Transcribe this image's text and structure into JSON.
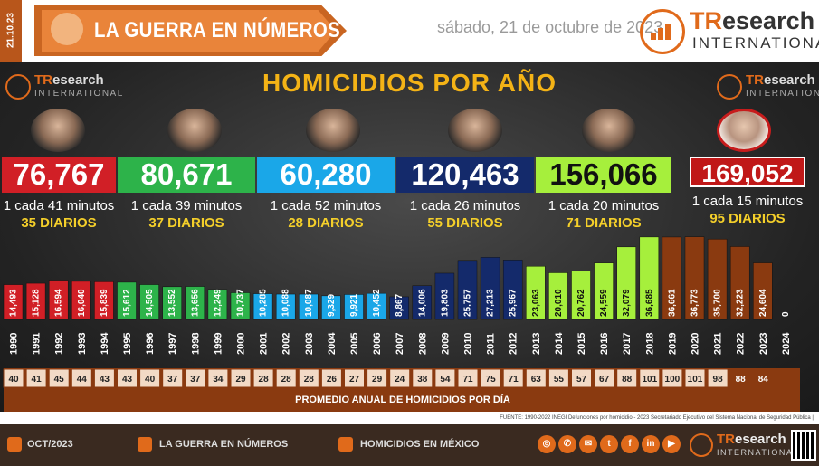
{
  "header": {
    "date_strip": "21.10.23",
    "title": "LA GUERRA EN NÚMEROS",
    "date": "sábado, 21 de octubre de 2023",
    "logo_tr": "TR",
    "logo_esearch": "esearch",
    "logo_int": "INTERNATIONAL"
  },
  "main": {
    "title": "HOMICIDIOS POR AÑO",
    "watermark_t": "TR",
    "watermark_esearch": "esearch",
    "watermark_int": "INTERNATIONAL"
  },
  "presidents": [
    {
      "total": "76,767",
      "rate": "1 cada 41 minutos",
      "daily": "35 DIARIOS",
      "color": "#d11f26",
      "text": "#ffffff"
    },
    {
      "total": "80,671",
      "rate": "1 cada 39 minutos",
      "daily": "37 DIARIOS",
      "color": "#2db34a",
      "text": "#ffffff"
    },
    {
      "total": "60,280",
      "rate": "1 cada 52 minutos",
      "daily": "28 DIARIOS",
      "color": "#1aa7e8",
      "text": "#ffffff"
    },
    {
      "total": "120,463",
      "rate": "1 cada 26 minutos",
      "daily": "55 DIARIOS",
      "color": "#142a6b",
      "text": "#ffffff"
    },
    {
      "total": "156,066",
      "rate": "1 cada 20 minutos",
      "daily": "71 DIARIOS",
      "color": "#a6ef3c",
      "text": "#111111"
    },
    {
      "total": "169,052",
      "rate": "1 cada 15 minutos",
      "daily": "95 DIARIOS",
      "color": "#c01818",
      "text": "#ffffff"
    }
  ],
  "chart_data": {
    "type": "bar",
    "title": "HOMICIDIOS POR AÑO",
    "categories": [
      "1990",
      "1991",
      "1992",
      "1993",
      "1994",
      "1995",
      "1996",
      "1997",
      "1998",
      "1999",
      "2000",
      "2001",
      "2002",
      "2003",
      "2004",
      "2005",
      "2006",
      "2007",
      "2008",
      "2009",
      "2010",
      "2011",
      "2012",
      "2013",
      "2014",
      "2015",
      "2016",
      "2017",
      "2018",
      "2019",
      "2020",
      "2021",
      "2022",
      "2023",
      "2024"
    ],
    "values": [
      14493,
      15128,
      16594,
      16040,
      15839,
      15612,
      14505,
      13552,
      13656,
      12249,
      10737,
      10285,
      10088,
      10087,
      9329,
      9921,
      10452,
      8867,
      14006,
      19803,
      25757,
      27213,
      25967,
      23063,
      20010,
      20762,
      24559,
      32079,
      36685,
      36661,
      36773,
      35700,
      32223,
      24604,
      0
    ],
    "value_labels": [
      "14,493",
      "15,128",
      "16,594",
      "16,040",
      "15,839",
      "15,612",
      "14,505",
      "13,552",
      "13,656",
      "12,249",
      "10,737",
      "10,285",
      "10,088",
      "10,087",
      "9,329",
      "9,921",
      "10,452",
      "8,867",
      "14,006",
      "19,803",
      "25,757",
      "27,213",
      "25,967",
      "23,063",
      "20,010",
      "20,762",
      "24,559",
      "32,079",
      "36,685",
      "36,661",
      "36,773",
      "35,700",
      "32,223",
      "24,604",
      "0"
    ],
    "colors": [
      "#d11f26",
      "#d11f26",
      "#d11f26",
      "#d11f26",
      "#d11f26",
      "#2db34a",
      "#2db34a",
      "#2db34a",
      "#2db34a",
      "#2db34a",
      "#2db34a",
      "#1aa7e8",
      "#1aa7e8",
      "#1aa7e8",
      "#1aa7e8",
      "#1aa7e8",
      "#1aa7e8",
      "#142a6b",
      "#142a6b",
      "#142a6b",
      "#142a6b",
      "#142a6b",
      "#142a6b",
      "#a6ef3c",
      "#a6ef3c",
      "#a6ef3c",
      "#a6ef3c",
      "#a6ef3c",
      "#a6ef3c",
      "#8a3a10",
      "#8a3a10",
      "#8a3a10",
      "#8a3a10",
      "#8a3a10",
      "#8a3a10"
    ],
    "daily_avg": [
      "40",
      "41",
      "45",
      "44",
      "43",
      "43",
      "40",
      "37",
      "37",
      "34",
      "29",
      "28",
      "28",
      "28",
      "26",
      "27",
      "29",
      "24",
      "38",
      "54",
      "71",
      "75",
      "71",
      "63",
      "55",
      "57",
      "67",
      "88",
      "101",
      "100",
      "101",
      "98",
      "88",
      "84",
      ""
    ],
    "daily_avg_label": "PROMEDIO ANUAL DE HOMICIDIOS POR DÍA",
    "ylim": [
      0,
      40000
    ]
  },
  "footer": {
    "source": "FUENTE: 1990-2022 INEGI Defunciones por homicidio - 2023 Secretariado Ejecutivo del Sistema Nacional de Seguridad Pública |",
    "item1": "OCT/2023",
    "item2": "LA GUERRA EN NÚMEROS",
    "item3": "HOMICIDIOS EN MÉXICO",
    "logo_tr": "TR",
    "logo_esearch": "esearch",
    "logo_int": "INTERNATIONAL"
  }
}
